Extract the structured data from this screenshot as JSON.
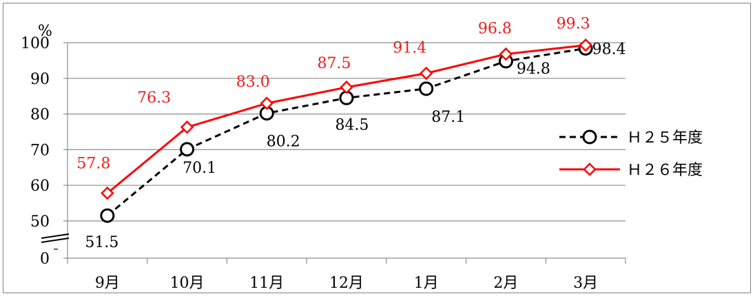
{
  "chart_data": {
    "type": "line",
    "title": "",
    "xlabel": "",
    "ylabel": "",
    "unit": "%",
    "categories": [
      "9月",
      "10月",
      "11月",
      "12月",
      "1月",
      "2月",
      "3月"
    ],
    "y_ticks": [
      0,
      50,
      60,
      70,
      80,
      90,
      100
    ],
    "ylim": [
      0,
      100
    ],
    "axis_break": "0–50",
    "grid": true,
    "legend_position": "right",
    "series": [
      {
        "name": "H25年度",
        "legend_label": "Ｈ２５年度",
        "values": [
          51.5,
          70.1,
          80.2,
          84.5,
          87.1,
          94.8,
          98.4
        ],
        "labels": [
          "51.5",
          "70.1",
          "80.2",
          "84.5",
          "87.1",
          "94.8",
          "98.4"
        ],
        "color": "#000000",
        "line_style": "dashed",
        "marker": "circle"
      },
      {
        "name": "H26年度",
        "legend_label": "Ｈ２６年度",
        "values": [
          57.8,
          76.3,
          83.0,
          87.5,
          91.4,
          96.8,
          99.3
        ],
        "labels": [
          "57.8",
          "76.3",
          "83.0",
          "87.5",
          "91.4",
          "96.8",
          "99.3"
        ],
        "color": "#ff0000",
        "label_color": "#ee1c1c",
        "line_style": "solid",
        "marker": "diamond"
      }
    ]
  }
}
